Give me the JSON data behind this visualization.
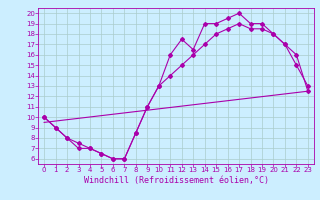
{
  "title": "",
  "xlabel": "Windchill (Refroidissement éolien,°C)",
  "ylabel": "",
  "bg_color": "#cceeff",
  "line_color": "#aa00aa",
  "grid_color": "#aacccc",
  "xlim": [
    -0.5,
    23.5
  ],
  "ylim": [
    5.5,
    20.5
  ],
  "xticks": [
    0,
    1,
    2,
    3,
    4,
    5,
    6,
    7,
    8,
    9,
    10,
    11,
    12,
    13,
    14,
    15,
    16,
    17,
    18,
    19,
    20,
    21,
    22,
    23
  ],
  "yticks": [
    6,
    7,
    8,
    9,
    10,
    11,
    12,
    13,
    14,
    15,
    16,
    17,
    18,
    19,
    20
  ],
  "line1_x": [
    0,
    1,
    2,
    3,
    4,
    5,
    6,
    7,
    8,
    9,
    10,
    11,
    12,
    13,
    14,
    15,
    16,
    17,
    18,
    19,
    20,
    21,
    22,
    23
  ],
  "line1_y": [
    10,
    9,
    8,
    7,
    7,
    6.5,
    6,
    6,
    8.5,
    11,
    13,
    16,
    17.5,
    16.5,
    19,
    19,
    19.5,
    20,
    19,
    19,
    18,
    17,
    15,
    13
  ],
  "line2_x": [
    0,
    1,
    2,
    3,
    4,
    5,
    6,
    7,
    8,
    9,
    10,
    11,
    12,
    13,
    14,
    15,
    16,
    17,
    18,
    19,
    20,
    21,
    22,
    23
  ],
  "line2_y": [
    10,
    9,
    8,
    7.5,
    7,
    6.5,
    6,
    6,
    8.5,
    11,
    13,
    14,
    15,
    16,
    17,
    18,
    18.5,
    19,
    18.5,
    18.5,
    18,
    17,
    16,
    12.5
  ],
  "line3_x": [
    0,
    23
  ],
  "line3_y": [
    9.5,
    12.5
  ],
  "marker": "D",
  "markersize": 2,
  "linewidth": 0.8,
  "xlabel_fontsize": 6,
  "tick_fontsize": 5,
  "xlabel_color": "#aa00aa",
  "tick_color": "#aa00aa",
  "axis_color": "#aa00aa",
  "spine_color": "#aa00aa"
}
